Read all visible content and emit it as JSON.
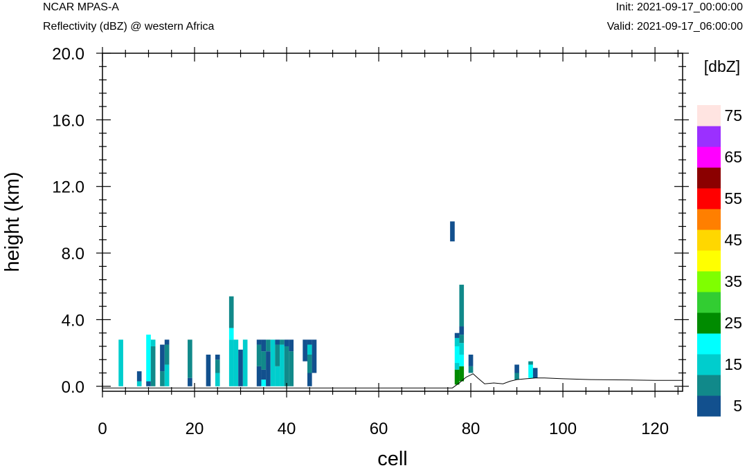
{
  "header": {
    "model": "NCAR MPAS-A",
    "field": "Reflectivity (dBZ) @ western Africa",
    "init": "Init: 2021-09-17_00:00:00",
    "valid": "Valid: 2021-09-17_06:00:00"
  },
  "chart_data": {
    "type": "heatmap",
    "xlabel": "cell",
    "ylabel": "height (km)",
    "xlim": [
      0,
      126
    ],
    "ylim": [
      -0.3,
      20.0
    ],
    "x_ticks": [
      "0",
      "20",
      "40",
      "60",
      "80",
      "100",
      "120"
    ],
    "y_ticks": [
      "0.0",
      "4.0",
      "8.0",
      "12.0",
      "16.0",
      "20.0"
    ],
    "grid": false,
    "colorbar": {
      "unit": "[dbZ]",
      "labels": [
        "5",
        "15",
        "25",
        "35",
        "45",
        "55",
        "65",
        "75"
      ],
      "bins": [
        {
          "level": 5,
          "color": "#12508E"
        },
        {
          "level": 10,
          "color": "#11898A"
        },
        {
          "level": 15,
          "color": "#00CDCD"
        },
        {
          "level": 20,
          "color": "#00FFFF"
        },
        {
          "level": 25,
          "color": "#008B00"
        },
        {
          "level": 30,
          "color": "#32CD32"
        },
        {
          "level": 35,
          "color": "#7FFF00"
        },
        {
          "level": 40,
          "color": "#FFFF00"
        },
        {
          "level": 45,
          "color": "#FFD700"
        },
        {
          "level": 50,
          "color": "#FF7F00"
        },
        {
          "level": 55,
          "color": "#FF0000"
        },
        {
          "level": 60,
          "color": "#8B0000"
        },
        {
          "level": 65,
          "color": "#FF00FF"
        },
        {
          "level": 70,
          "color": "#9B30FF"
        },
        {
          "level": 75,
          "color": "#FFE4E1"
        }
      ]
    },
    "terrain_km": [
      [
        0,
        -0.1
      ],
      [
        76,
        -0.1
      ],
      [
        77.5,
        0.2
      ],
      [
        79,
        0.55
      ],
      [
        80.5,
        0.75
      ],
      [
        81.5,
        0.5
      ],
      [
        83,
        0.15
      ],
      [
        85,
        0.2
      ],
      [
        87,
        0.15
      ],
      [
        88.5,
        0.3
      ],
      [
        90,
        0.4
      ],
      [
        92,
        0.45
      ],
      [
        94,
        0.5
      ],
      [
        96,
        0.5
      ],
      [
        100,
        0.45
      ],
      [
        106,
        0.4
      ],
      [
        114,
        0.38
      ],
      [
        120,
        0.35
      ],
      [
        126,
        0.35
      ]
    ],
    "cells": [
      {
        "x": 4,
        "segments": [
          [
            0,
            2.8,
            15
          ]
        ]
      },
      {
        "x": 8,
        "segments": [
          [
            0,
            0.3,
            15
          ],
          [
            0.3,
            0.9,
            5
          ]
        ]
      },
      {
        "x": 10,
        "segments": [
          [
            0,
            0.3,
            5
          ],
          [
            0.3,
            3.1,
            20
          ]
        ]
      },
      {
        "x": 11,
        "segments": [
          [
            0,
            2.4,
            10
          ],
          [
            2.4,
            2.8,
            15
          ]
        ]
      },
      {
        "x": 13,
        "segments": [
          [
            0,
            0.9,
            10
          ],
          [
            0.9,
            2.5,
            5
          ]
        ]
      },
      {
        "x": 14,
        "segments": [
          [
            0,
            1.3,
            15
          ],
          [
            1.3,
            2.5,
            10
          ],
          [
            2.5,
            2.8,
            5
          ]
        ]
      },
      {
        "x": 19,
        "segments": [
          [
            0,
            0.5,
            5
          ],
          [
            0.5,
            2.8,
            10
          ]
        ]
      },
      {
        "x": 23,
        "segments": [
          [
            0,
            1.9,
            5
          ]
        ]
      },
      {
        "x": 25,
        "segments": [
          [
            0,
            0.8,
            15
          ],
          [
            0.8,
            1.6,
            10
          ],
          [
            1.6,
            1.9,
            5
          ]
        ]
      },
      {
        "x": 28,
        "segments": [
          [
            0,
            2.8,
            15
          ],
          [
            2.8,
            3.5,
            20
          ],
          [
            3.5,
            5.4,
            10
          ]
        ]
      },
      {
        "x": 29,
        "segments": [
          [
            0,
            2.8,
            15
          ]
        ]
      },
      {
        "x": 30,
        "segments": [
          [
            0,
            2.2,
            5
          ]
        ]
      },
      {
        "x": 31,
        "segments": [
          [
            0,
            2.8,
            15
          ]
        ]
      },
      {
        "x": 34,
        "segments": [
          [
            0,
            1.2,
            5
          ],
          [
            1.2,
            2.5,
            10
          ],
          [
            2.5,
            2.8,
            5
          ]
        ]
      },
      {
        "x": 35,
        "segments": [
          [
            0,
            0.4,
            20
          ],
          [
            0.4,
            1.0,
            5
          ],
          [
            1.0,
            2.1,
            10
          ],
          [
            2.1,
            2.8,
            5
          ]
        ]
      },
      {
        "x": 36,
        "segments": [
          [
            0,
            2.1,
            5
          ],
          [
            2.1,
            2.8,
            10
          ]
        ]
      },
      {
        "x": 37,
        "segments": [
          [
            0,
            2.8,
            15
          ]
        ]
      },
      {
        "x": 38,
        "segments": [
          [
            0,
            1.2,
            15
          ],
          [
            1.2,
            2.5,
            10
          ],
          [
            2.5,
            2.8,
            5
          ]
        ]
      },
      {
        "x": 39,
        "segments": [
          [
            0,
            2.5,
            15
          ],
          [
            2.5,
            2.8,
            10
          ]
        ]
      },
      {
        "x": 40,
        "segments": [
          [
            0,
            2.4,
            10
          ],
          [
            2.4,
            2.8,
            5
          ]
        ]
      },
      {
        "x": 41,
        "segments": [
          [
            0,
            2.1,
            10
          ],
          [
            2.1,
            2.8,
            5
          ]
        ]
      },
      {
        "x": 44,
        "segments": [
          [
            1.5,
            2.8,
            5
          ]
        ]
      },
      {
        "x": 45,
        "segments": [
          [
            0,
            0.8,
            5
          ],
          [
            0.8,
            1.9,
            10
          ],
          [
            1.9,
            2.5,
            15
          ],
          [
            2.5,
            2.8,
            5
          ]
        ]
      },
      {
        "x": 46,
        "segments": [
          [
            0.8,
            2.8,
            5
          ]
        ]
      },
      {
        "x": 76,
        "segments": [
          [
            8.7,
            9.9,
            5
          ]
        ]
      },
      {
        "x": 77,
        "segments": [
          [
            0.1,
            1.0,
            25
          ],
          [
            1.0,
            1.4,
            15
          ],
          [
            1.4,
            2.4,
            20
          ],
          [
            2.4,
            2.9,
            15
          ],
          [
            2.9,
            3.2,
            5
          ]
        ]
      },
      {
        "x": 78,
        "segments": [
          [
            0.3,
            1.2,
            25
          ],
          [
            1.2,
            1.9,
            20
          ],
          [
            1.9,
            2.6,
            15
          ],
          [
            2.6,
            3.1,
            10
          ],
          [
            3.1,
            3.6,
            5
          ],
          [
            3.6,
            6.1,
            10
          ]
        ]
      },
      {
        "x": 80,
        "segments": [
          [
            0.8,
            1.2,
            10
          ],
          [
            1.2,
            1.9,
            5
          ]
        ]
      },
      {
        "x": 90,
        "segments": [
          [
            0.4,
            0.8,
            10
          ],
          [
            0.8,
            1.3,
            5
          ]
        ]
      },
      {
        "x": 93,
        "segments": [
          [
            0.5,
            1.3,
            20
          ],
          [
            1.3,
            1.5,
            10
          ]
        ]
      },
      {
        "x": 94,
        "segments": [
          [
            0.5,
            1.1,
            5
          ]
        ]
      }
    ]
  }
}
